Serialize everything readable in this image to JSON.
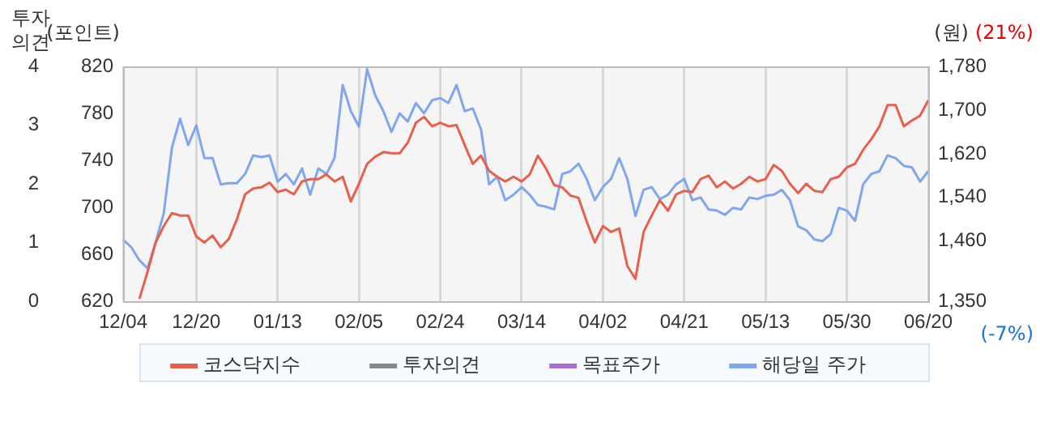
{
  "chart_data": {
    "type": "line",
    "categories": [
      "12/04",
      null,
      null,
      null,
      null,
      null,
      null,
      null,
      null,
      "12/20",
      null,
      null,
      null,
      null,
      null,
      null,
      null,
      null,
      null,
      "01/13",
      null,
      null,
      null,
      null,
      null,
      null,
      null,
      null,
      null,
      "02/05",
      null,
      null,
      null,
      null,
      null,
      null,
      null,
      null,
      null,
      "02/24",
      null,
      null,
      null,
      null,
      null,
      null,
      null,
      null,
      null,
      "03/14",
      null,
      null,
      null,
      null,
      null,
      null,
      null,
      null,
      null,
      "04/02",
      null,
      null,
      null,
      null,
      null,
      null,
      null,
      null,
      null,
      "04/21",
      null,
      null,
      null,
      null,
      null,
      null,
      null,
      null,
      null,
      "05/13",
      null,
      null,
      null,
      null,
      null,
      null,
      null,
      null,
      null,
      "05/30",
      null,
      null,
      null,
      null,
      null,
      null,
      null,
      null,
      null,
      "06/20"
    ],
    "series": [
      {
        "name": "코스닥지수",
        "color": "#e8604c",
        "axis": "y",
        "values": [
          null,
          null,
          622,
          645,
          670,
          684,
          695,
          693,
          693,
          675,
          670,
          676,
          666,
          673,
          690,
          711,
          716,
          717,
          721,
          713,
          715,
          711,
          722,
          724,
          724,
          728,
          722,
          726,
          705,
          720,
          737,
          743,
          747,
          746,
          746,
          755,
          772,
          777,
          769,
          772,
          769,
          770,
          753,
          737,
          744,
          731,
          726,
          722,
          726,
          722,
          728,
          744,
          733,
          719,
          717,
          710,
          708,
          688,
          670,
          684,
          679,
          682,
          650,
          639,
          679,
          693,
          706,
          697,
          711,
          714,
          713,
          724,
          727,
          717,
          722,
          716,
          720,
          726,
          722,
          724,
          736,
          731,
          720,
          712,
          720,
          714,
          713,
          724,
          726,
          734,
          737,
          749,
          758,
          769,
          787,
          787,
          769,
          774,
          778,
          791
        ]
      },
      {
        "name": "투자의견",
        "color": "#888888",
        "axis": "y3",
        "values": [
          null,
          null,
          null,
          null,
          null,
          null,
          null,
          null,
          null,
          null,
          null,
          null,
          null,
          null,
          null,
          null,
          null,
          null,
          null,
          null,
          null,
          null,
          null,
          null,
          null,
          null,
          null,
          null,
          null,
          null,
          null,
          null,
          null,
          null,
          null,
          null,
          null,
          null,
          null,
          null,
          null,
          null,
          null,
          null,
          null,
          null,
          null,
          null,
          null,
          null,
          null,
          null,
          null,
          null,
          null,
          null,
          null,
          null,
          null,
          null,
          null,
          null,
          null,
          null,
          null,
          null,
          null,
          null,
          null,
          null,
          null,
          null,
          null,
          null,
          null,
          null,
          null,
          null,
          null,
          null,
          null,
          null,
          null,
          null,
          null,
          null,
          null,
          null,
          null,
          null,
          null,
          null,
          null,
          null,
          null,
          null,
          null,
          null,
          null,
          null
        ]
      },
      {
        "name": "목표주가",
        "color": "#a66fd0",
        "axis": "y2",
        "values": [
          null,
          null,
          null,
          null,
          null,
          null,
          null,
          null,
          null,
          null,
          null,
          null,
          null,
          null,
          null,
          null,
          null,
          null,
          null,
          null,
          null,
          null,
          null,
          null,
          null,
          null,
          null,
          null,
          null,
          null,
          null,
          null,
          null,
          null,
          null,
          null,
          null,
          null,
          null,
          null,
          null,
          null,
          null,
          null,
          null,
          null,
          null,
          null,
          null,
          null,
          null,
          null,
          null,
          null,
          null,
          null,
          null,
          null,
          null,
          null,
          null,
          null,
          null,
          null,
          null,
          null,
          null,
          null,
          null,
          null,
          null,
          null,
          null,
          null,
          null,
          null,
          null,
          null,
          null,
          null,
          null,
          null,
          null,
          null,
          null,
          null,
          null,
          null,
          null,
          null,
          null,
          null,
          null,
          null,
          null,
          null,
          null,
          null,
          null,
          null
        ]
      },
      {
        "name": "해당일 주가",
        "color": "#7fa6ef",
        "axis": "y2",
        "values": [
          1463,
          1449,
          1425,
          1410,
          1458,
          1511,
          1631,
          1684,
          1636,
          1672,
          1612,
          1612,
          1564,
          1566,
          1566,
          1583,
          1617,
          1614,
          1617,
          1569,
          1583,
          1564,
          1593,
          1545,
          1593,
          1583,
          1612,
          1746,
          1698,
          1670,
          1775,
          1727,
          1698,
          1660,
          1694,
          1679,
          1713,
          1694,
          1718,
          1722,
          1713,
          1746,
          1698,
          1703,
          1665,
          1564,
          1578,
          1535,
          1545,
          1559,
          1545,
          1526,
          1523,
          1518,
          1583,
          1588,
          1602,
          1574,
          1535,
          1559,
          1574,
          1612,
          1574,
          1506,
          1554,
          1559,
          1537,
          1545,
          1564,
          1574,
          1535,
          1540,
          1518,
          1516,
          1508,
          1521,
          1518,
          1540,
          1537,
          1543,
          1545,
          1554,
          1535,
          1487,
          1480,
          1463,
          1460,
          1473,
          1521,
          1516,
          1497,
          1564,
          1583,
          1588,
          1617,
          1612,
          1598,
          1595,
          1569,
          1588
        ]
      }
    ],
    "ylabel": "(포인트)",
    "y2label": "(원)",
    "y3label": "투자의견",
    "ylim": [
      620,
      820
    ],
    "yticks": [
      620,
      660,
      700,
      740,
      780,
      820
    ],
    "y2lim": [
      1350,
      1780
    ],
    "y2ticks": [
      {
        "value": 1350,
        "label": "1,350"
      },
      {
        "value": 1460,
        "label": "1,460"
      },
      {
        "value": 1540,
        "label": "1,540"
      },
      {
        "value": 1620,
        "label": "1,620"
      },
      {
        "value": 1700,
        "label": "1,700"
      },
      {
        "value": 1780,
        "label": "1,780"
      }
    ],
    "y3lim": [
      0,
      4
    ],
    "y3ticks": [
      0,
      1,
      2,
      3,
      4
    ],
    "annotations": [
      "(21%)",
      "(-7%)"
    ],
    "grid": "x",
    "legend": "bottom",
    "marker": "none",
    "line_style": "solid"
  }
}
